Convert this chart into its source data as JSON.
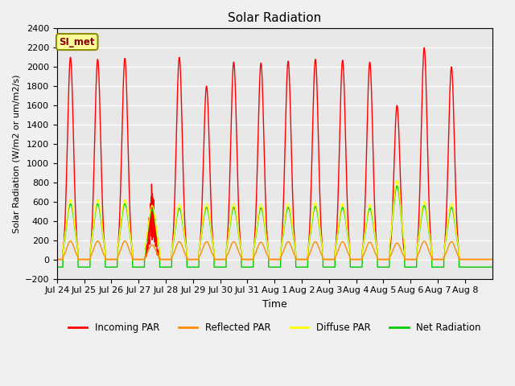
{
  "title": "Solar Radiation",
  "ylabel": "Solar Radiation (W/m2 or um/m2/s)",
  "xlabel": "Time",
  "annotation": "SI_met",
  "ylim": [
    -200,
    2400
  ],
  "yticks": [
    -200,
    0,
    200,
    400,
    600,
    800,
    1000,
    1200,
    1400,
    1600,
    1800,
    2000,
    2200,
    2400
  ],
  "x_tick_labels": [
    "Jul 24",
    "Jul 25",
    "Jul 26",
    "Jul 27",
    "Jul 28",
    "Jul 29",
    "Jul 30",
    "Jul 31",
    "Aug 1",
    "Aug 2",
    "Aug 3",
    "Aug 4",
    "Aug 5",
    "Aug 6",
    "Aug 7",
    "Aug 8"
  ],
  "series": {
    "incoming": {
      "color": "#FF0000",
      "label": "Incoming PAR",
      "lw": 1.0
    },
    "reflected": {
      "color": "#FF8C00",
      "label": "Reflected PAR",
      "lw": 1.0
    },
    "diffuse": {
      "color": "#FFFF00",
      "label": "Diffuse PAR",
      "lw": 1.0
    },
    "net": {
      "color": "#00CC00",
      "label": "Net Radiation",
      "lw": 1.0
    }
  },
  "fig_facecolor": "#F0F0F0",
  "ax_facecolor": "#E8E8E8",
  "n_days": 16,
  "points_per_day": 144,
  "day_peaks_incoming": [
    2100,
    2080,
    2090,
    800,
    2100,
    1800,
    2050,
    2040,
    2060,
    2080,
    2070,
    2050,
    1600,
    2200,
    2000,
    0
  ],
  "day_peaks_diffuse": [
    620,
    620,
    620,
    560,
    570,
    580,
    580,
    575,
    580,
    590,
    580,
    570,
    820,
    600,
    580,
    0
  ],
  "day_peaks_reflected": [
    190,
    190,
    190,
    150,
    185,
    185,
    185,
    180,
    185,
    185,
    185,
    180,
    170,
    190,
    185,
    0
  ],
  "net_night": -80,
  "cloudy_days": [
    3
  ]
}
